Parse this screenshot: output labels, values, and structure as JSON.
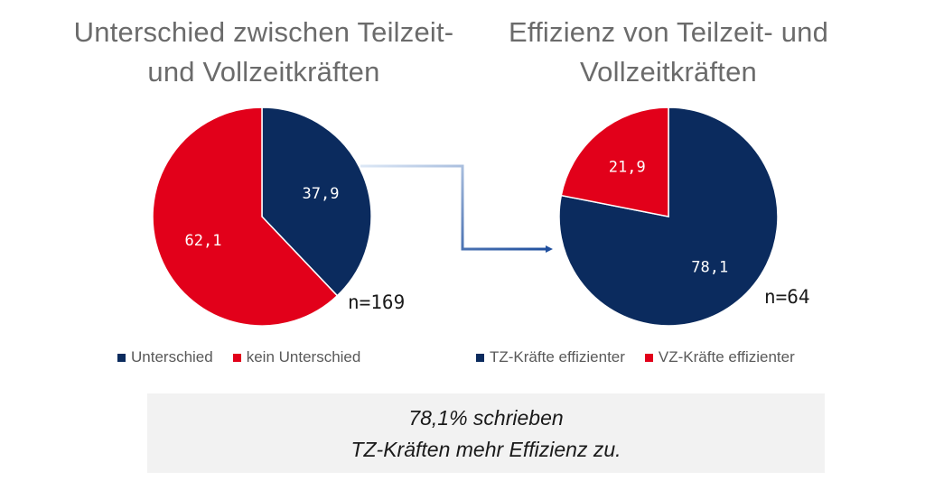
{
  "colors": {
    "navy": "#0b2b5e",
    "red": "#e2001a",
    "connector_start": "#dde8f6",
    "connector_end": "#1f4f9e"
  },
  "chart_data": [
    {
      "type": "pie",
      "title": "Unterschied zwischen Teilzeit- und Vollzeitkräften",
      "title_lines": [
        "Unterschied zwischen Teilzeit-",
        "und Vollzeitkräften"
      ],
      "categories": [
        "Unterschied",
        "kein Unterschied"
      ],
      "values": [
        37.9,
        62.1
      ],
      "value_labels": [
        "37,9",
        "62,1"
      ],
      "colors": [
        "#0b2b5e",
        "#e2001a"
      ],
      "n_label": "n=169",
      "legend_placement": "bottom"
    },
    {
      "type": "pie",
      "title": "Effizienz von Teilzeit- und Vollzeitkräften",
      "title_lines": [
        "Effizienz von Teilzeit- und",
        "Vollzeitkräften"
      ],
      "categories": [
        "TZ-Kräfte effizienter",
        "VZ-Kräfte effizienter"
      ],
      "values": [
        78.1,
        21.9
      ],
      "value_labels": [
        "78,1",
        "21,9"
      ],
      "colors": [
        "#0b2b5e",
        "#e2001a"
      ],
      "n_label": "n=64",
      "legend_placement": "bottom"
    }
  ],
  "summary": {
    "line1": "78,1% schrieben",
    "line2": "TZ-Kräften mehr Effizienz zu."
  }
}
